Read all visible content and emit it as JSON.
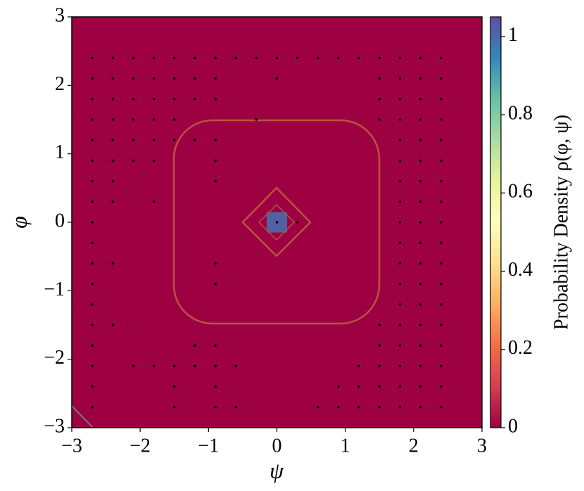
{
  "chart_data": {
    "type": "heatmap-scatter",
    "xlabel": "ψ",
    "ylabel": "φ",
    "colorbar_label": "Probability Density ρ(φ, ψ)",
    "xlim": [
      -3,
      3
    ],
    "ylim": [
      -3,
      3
    ],
    "xticks": [
      {
        "value": -3,
        "label": "−3"
      },
      {
        "value": -2,
        "label": "−2"
      },
      {
        "value": -1,
        "label": "−1"
      },
      0,
      1,
      2,
      3
    ],
    "yticks": [
      {
        "value": -3,
        "label": "−3"
      },
      {
        "value": -2,
        "label": "−2"
      },
      {
        "value": -1,
        "label": "−1"
      },
      0,
      1,
      2,
      3
    ],
    "clim": [
      0,
      1.05
    ],
    "cticks": [
      0,
      0.2,
      0.4,
      0.6,
      0.8,
      1
    ],
    "colormap": [
      "#9e0142",
      "#d53e4f",
      "#f46d43",
      "#fdae61",
      "#fee08b",
      "#ffffbf",
      "#e6f598",
      "#abdda4",
      "#66c2a5",
      "#3288bd",
      "#5e4fa2"
    ],
    "heatmap": {
      "background": 0,
      "cells": [
        {
          "x": [
            -0.15,
            0.15
          ],
          "y": [
            -0.15,
            0.15
          ],
          "value": 1.0
        }
      ]
    },
    "point_color": "#000000",
    "points": [
      {
        "y": 2.4,
        "x": [
          -2.7,
          -2.4,
          -2.1,
          -1.8,
          -1.5,
          -1.2,
          -0.9,
          -0.6,
          -0.3,
          0,
          0.3,
          0.6,
          0.9,
          1.2,
          1.5,
          1.8,
          2.1,
          2.4
        ]
      },
      {
        "y": 2.1,
        "x": [
          -2.7,
          -2.4,
          -2.1,
          -1.8,
          -1.5,
          -1.2,
          -0.9,
          0,
          1.5,
          1.8,
          2.1,
          2.4
        ]
      },
      {
        "y": 1.8,
        "x": [
          -2.7,
          -2.4,
          -2.1,
          -1.8,
          -1.5,
          -1.2,
          -0.9,
          1.5,
          1.8,
          2.1,
          2.4
        ]
      },
      {
        "y": 1.5,
        "x": [
          -2.7,
          -2.4,
          -2.1,
          -1.8,
          -1.5,
          -0.3,
          1.5,
          1.8,
          2.1,
          2.4
        ]
      },
      {
        "y": 1.2,
        "x": [
          -2.7,
          -2.4,
          -2.1,
          -1.8,
          -1.5,
          -1.2,
          -0.9,
          1.8,
          2.1,
          2.4
        ]
      },
      {
        "y": 0.9,
        "x": [
          -2.7,
          -2.4,
          -2.1,
          -1.8,
          -0.9,
          1.8,
          2.1,
          2.4
        ]
      },
      {
        "y": 0.6,
        "x": [
          -2.7,
          -2.4,
          -0.9,
          1.8,
          2.1,
          2.4
        ]
      },
      {
        "y": 0.3,
        "x": [
          -2.7,
          -2.4,
          -1.8,
          1.8,
          2.1,
          2.4
        ]
      },
      {
        "y": 0,
        "x": [
          -2.7,
          0,
          0.3,
          1.8,
          2.1,
          2.4
        ]
      },
      {
        "y": -0.3,
        "x": [
          -2.7,
          1.8,
          2.1,
          2.4
        ]
      },
      {
        "y": -0.6,
        "x": [
          -2.7,
          -2.4,
          -0.9,
          1.8,
          2.1,
          2.4
        ]
      },
      {
        "y": -0.9,
        "x": [
          -2.7,
          -0.9,
          1.8,
          2.1,
          2.4
        ]
      },
      {
        "y": -1.2,
        "x": [
          -2.7,
          1.8,
          2.1,
          2.4
        ]
      },
      {
        "y": -1.5,
        "x": [
          -2.7,
          -2.4,
          1.5,
          1.8,
          2.1,
          2.4
        ]
      },
      {
        "y": -1.8,
        "x": [
          -2.7,
          -1.2,
          -0.9,
          1.5,
          1.8,
          2.1,
          2.4
        ]
      },
      {
        "y": -2.1,
        "x": [
          -2.7,
          -2.1,
          -1.8,
          -1.5,
          -1.2,
          -0.9,
          -0.6,
          1.2,
          1.5,
          1.8,
          2.1,
          2.4
        ]
      },
      {
        "y": -2.4,
        "x": [
          -2.7,
          -1.5,
          -0.9,
          0.9,
          1.2,
          1.5,
          1.8,
          2.1,
          2.4
        ]
      },
      {
        "y": -2.7,
        "x": [
          -2.7,
          -1.5,
          -0.9,
          -0.6,
          0.6,
          0.9,
          1.2,
          1.5,
          1.8,
          2.1,
          2.4
        ]
      }
    ]
  }
}
